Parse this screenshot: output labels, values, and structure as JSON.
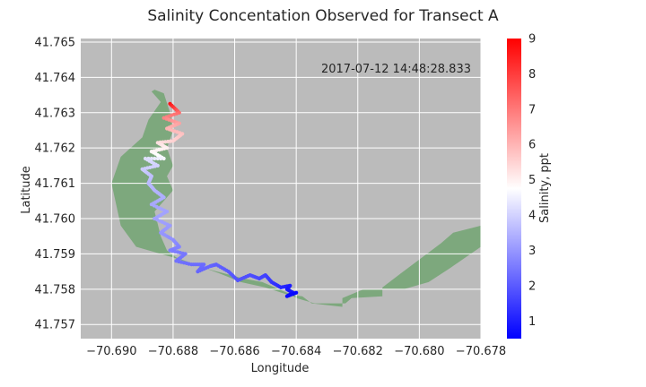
{
  "chart_data": {
    "type": "scatter",
    "title": "Salinity Concentation Observed for Transect A",
    "xlabel": "Longitude",
    "ylabel": "Latitude",
    "xlim": [
      -70.691,
      -70.678
    ],
    "ylim": [
      41.7566,
      41.7651
    ],
    "xticks": [
      -70.69,
      -70.688,
      -70.686,
      -70.684,
      -70.682,
      -70.68,
      -70.678
    ],
    "xtick_labels": [
      "−70.690",
      "−70.688",
      "−70.686",
      "−70.684",
      "−70.682",
      "−70.680",
      "−70.678"
    ],
    "yticks": [
      41.757,
      41.758,
      41.759,
      41.76,
      41.761,
      41.762,
      41.763,
      41.764,
      41.765
    ],
    "ytick_labels": [
      "41.757",
      "41.758",
      "41.759",
      "41.760",
      "41.761",
      "41.762",
      "41.763",
      "41.764",
      "41.765"
    ],
    "grid": true,
    "background_color": "#bbbbbb",
    "annotation": "2017-07-12 14:48:28.833",
    "colorbar": {
      "label": "Salinity, ppt",
      "colormap": "bwr",
      "range": [
        0.5,
        9
      ],
      "ticks": [
        1,
        2,
        3,
        4,
        5,
        6,
        7,
        8,
        9
      ],
      "tick_labels": [
        "1",
        "2",
        "3",
        "4",
        "5",
        "6",
        "7",
        "8",
        "9"
      ]
    },
    "land_polygon": {
      "color": "#7da87d",
      "lon": [
        -70.6886,
        -70.6883,
        -70.6881,
        -70.688,
        -70.6882,
        -70.688,
        -70.6882,
        -70.688,
        -70.6886,
        -70.6884,
        -70.6882,
        -70.6879,
        -70.6873,
        -70.6865,
        -70.6858,
        -70.685,
        -70.6843,
        -70.6838,
        -70.6835,
        -70.6825,
        -70.6825,
        -70.6818,
        -70.6813,
        -70.6805,
        -70.6797,
        -70.679,
        -70.6785,
        -70.678,
        -70.678,
        -70.6789,
        -70.6793,
        -70.6806,
        -70.6812,
        -70.6812,
        -70.6822,
        -70.6824,
        -70.6834,
        -70.684,
        -70.6843,
        -70.6851,
        -70.6857,
        -70.687,
        -70.688,
        -70.6892,
        -70.6897,
        -70.69,
        -70.6897,
        -70.689,
        -70.6888,
        -70.6884,
        -70.6887
      ],
      "lat": [
        41.76365,
        41.76355,
        41.763,
        41.7625,
        41.762,
        41.7615,
        41.7612,
        41.7608,
        41.7602,
        41.7595,
        41.7591,
        41.7589,
        41.7587,
        41.75845,
        41.7582,
        41.75805,
        41.75785,
        41.7578,
        41.7576,
        41.7575,
        41.75775,
        41.758,
        41.758,
        41.758,
        41.7582,
        41.7586,
        41.7589,
        41.7592,
        41.7598,
        41.7596,
        41.7593,
        41.75845,
        41.75805,
        41.7578,
        41.75775,
        41.7576,
        41.7576,
        41.75775,
        41.7579,
        41.7582,
        41.7583,
        41.7586,
        41.7589,
        41.7592,
        41.7598,
        41.761,
        41.76175,
        41.7623,
        41.7628,
        41.7633,
        41.7636
      ]
    },
    "track": {
      "lon": [
        -70.6881,
        -70.6878,
        -70.6883,
        -70.6878,
        -70.6882,
        -70.6877,
        -70.688,
        -70.6885,
        -70.6882,
        -70.6887,
        -70.6883,
        -70.6889,
        -70.6885,
        -70.689,
        -70.6887,
        -70.6888,
        -70.6886,
        -70.6883,
        -70.6887,
        -70.6882,
        -70.6886,
        -70.6881,
        -70.6884,
        -70.688,
        -70.6878,
        -70.6881,
        -70.6876,
        -70.6879,
        -70.6874,
        -70.687,
        -70.6872,
        -70.6868,
        -70.6866,
        -70.6862,
        -70.6859,
        -70.6855,
        -70.6852,
        -70.685,
        -70.6848,
        -70.6845,
        -70.6842,
        -70.6843,
        -70.6841,
        -70.6843,
        -70.684
      ],
      "lat": [
        41.76325,
        41.763,
        41.76285,
        41.7627,
        41.76255,
        41.7624,
        41.7622,
        41.76215,
        41.762,
        41.7619,
        41.7617,
        41.7617,
        41.7615,
        41.7614,
        41.7612,
        41.761,
        41.7608,
        41.7606,
        41.7604,
        41.7602,
        41.76,
        41.7598,
        41.7596,
        41.7594,
        41.7592,
        41.7591,
        41.759,
        41.7588,
        41.7587,
        41.7587,
        41.7585,
        41.75865,
        41.7587,
        41.7585,
        41.75825,
        41.7584,
        41.7583,
        41.7584,
        41.7582,
        41.75805,
        41.7581,
        41.758,
        41.7579,
        41.7578,
        41.7579
      ],
      "salinity": [
        8.7,
        7.2,
        6.8,
        6.3,
        6.0,
        5.8,
        5.5,
        5.3,
        5.0,
        4.9,
        4.6,
        4.2,
        4.0,
        3.9,
        3.7,
        3.6,
        3.5,
        3.4,
        3.3,
        3.2,
        3.2,
        3.1,
        3.0,
        2.9,
        2.7,
        2.6,
        2.5,
        2.4,
        2.3,
        2.3,
        2.2,
        2.2,
        2.1,
        2.0,
        1.9,
        1.8,
        1.7,
        1.6,
        1.4,
        1.2,
        1.0,
        0.9,
        0.8,
        0.7,
        0.6
      ]
    }
  }
}
